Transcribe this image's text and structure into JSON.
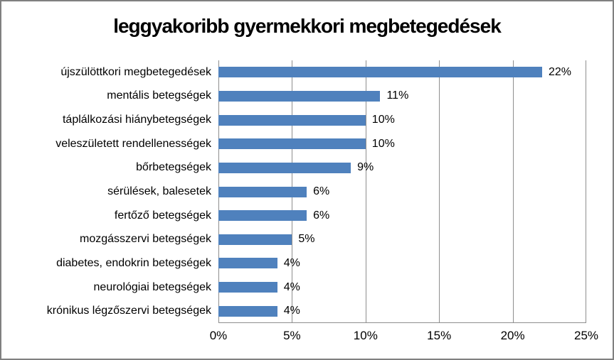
{
  "title": "leggyakoribb gyermekkori megbetegedések",
  "colors": {
    "bar": "#4F81BD",
    "gridline": "#8e8e8e",
    "axis": "#8e8e8e",
    "frame_border": "#808080",
    "text": "#000000",
    "background": "#ffffff"
  },
  "chart_data": {
    "type": "bar",
    "orientation": "horizontal",
    "title": "leggyakoribb gyermekkori megbetegedések",
    "categories": [
      "újszülöttkori megbetegedések",
      "mentális betegségek",
      "táplálkozási hiánybetegségek",
      "veleszületett rendellenességek",
      "bőrbetegségek",
      "sérülések, balesetek",
      "fertőző betegségek",
      "mozgásszervi betegségek",
      "diabetes, endokrin betegségek",
      "neurológiai betegségek",
      "krónikus légzőszervi betegségek"
    ],
    "values": [
      22,
      11,
      10,
      10,
      9,
      6,
      6,
      5,
      4,
      4,
      4
    ],
    "data_labels": [
      "22%",
      "11%",
      "10%",
      "10%",
      "9%",
      "6%",
      "6%",
      "5%",
      "4%",
      "4%",
      "4%"
    ],
    "xlabel": "",
    "ylabel": "",
    "xlim": [
      0,
      25
    ],
    "x_ticks": [
      "0%",
      "5%",
      "10%",
      "15%",
      "20%",
      "25%"
    ],
    "grid": "vertical",
    "legend": "none"
  }
}
